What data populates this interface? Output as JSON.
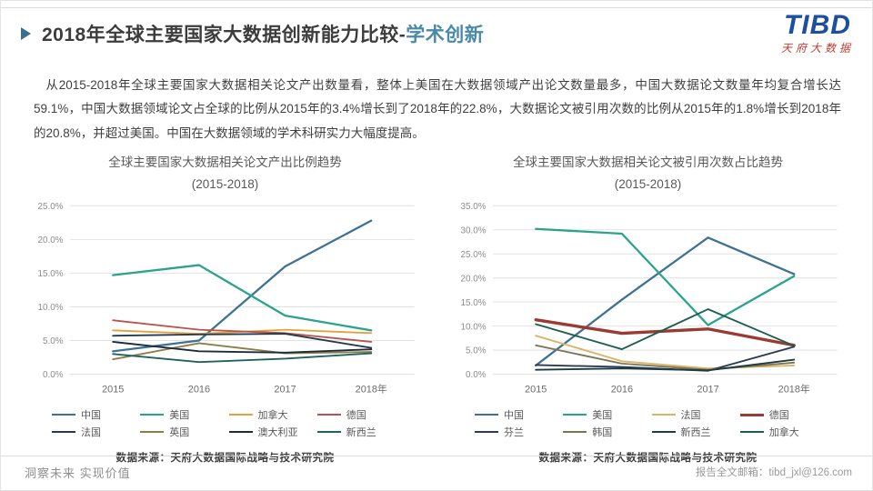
{
  "header": {
    "title_main": "2018年全球主要国家大数据创新能力比较-",
    "title_accent": "学术创新",
    "accent_color": "#4a89a8"
  },
  "logo": {
    "text": "TIBD",
    "subtext": "天府大数据"
  },
  "intro": {
    "text": "从2015-2018年全球主要国家大数据相关论文产出数量看，整体上美国在大数据领域产出论文数量最多，中国大数据论文数量年均复合增长达59.1%，中国大数据领域论文占全球的比例从2015年的3.4%增长到了2018年的22.8%，大数据论文被引用次数的比例从2015年的1.8%增长到2018年的20.8%，并超过美国。中国在大数据领域的学术科研实力大幅度提高。"
  },
  "chart_data": [
    {
      "type": "line",
      "title": "全球主要国家大数据相关论文产出比例趋势",
      "subtitle": "(2015-2018)",
      "categories": [
        "2015",
        "2016",
        "2017",
        "2018年"
      ],
      "ylim": [
        0,
        25
      ],
      "ytick_step": 5,
      "grid": true,
      "legend_position": "bottom",
      "series": [
        {
          "name": "中国",
          "color": "#3e7292",
          "width": 2.2,
          "values": [
            3.4,
            5.0,
            16.0,
            22.8
          ]
        },
        {
          "name": "美国",
          "color": "#2aa38b",
          "width": 2.2,
          "values": [
            14.7,
            16.2,
            8.7,
            6.5
          ]
        },
        {
          "name": "加拿大",
          "color": "#e2a33d",
          "width": 1.8,
          "values": [
            6.5,
            6.0,
            6.6,
            6.1
          ]
        },
        {
          "name": "德国",
          "color": "#b8544d",
          "width": 1.8,
          "values": [
            8.0,
            6.6,
            6.1,
            4.8
          ]
        },
        {
          "name": "法国",
          "color": "#253a4d",
          "width": 1.8,
          "values": [
            5.7,
            5.9,
            6.0,
            3.9
          ]
        },
        {
          "name": "英国",
          "color": "#8c7e4a",
          "width": 1.8,
          "values": [
            2.2,
            4.6,
            3.1,
            3.3
          ]
        },
        {
          "name": "澳大利亚",
          "color": "#1d2c3a",
          "width": 1.8,
          "values": [
            4.8,
            3.4,
            3.2,
            3.7
          ]
        },
        {
          "name": "新西兰",
          "color": "#20635a",
          "width": 1.8,
          "values": [
            3.0,
            1.8,
            2.3,
            3.1
          ]
        }
      ],
      "source": "数据来源：天府大数据国际战略与技术研究院"
    },
    {
      "type": "line",
      "title": "全球主要国家大数据相关论文被引用次数占比趋势",
      "subtitle": "(2015-2018)",
      "categories": [
        "2015",
        "2016",
        "2017",
        "2018年"
      ],
      "ylim": [
        0,
        35
      ],
      "ytick_step": 5,
      "grid": true,
      "legend_position": "bottom",
      "series": [
        {
          "name": "中国",
          "color": "#3e7292",
          "width": 2.2,
          "values": [
            1.8,
            15.5,
            28.4,
            20.8
          ]
        },
        {
          "name": "美国",
          "color": "#2aa38b",
          "width": 2.2,
          "values": [
            30.2,
            29.2,
            10.2,
            20.4
          ]
        },
        {
          "name": "法国",
          "color": "#d9b469",
          "width": 1.8,
          "values": [
            8.0,
            2.7,
            1.2,
            1.8
          ]
        },
        {
          "name": "德国",
          "color": "#9b3a32",
          "width": 3.2,
          "values": [
            11.3,
            8.5,
            9.4,
            6.0
          ]
        },
        {
          "name": "芬兰",
          "color": "#2b3c52",
          "width": 1.8,
          "values": [
            1.9,
            1.5,
            0.7,
            5.7
          ]
        },
        {
          "name": "韩国",
          "color": "#7d7455",
          "width": 1.8,
          "values": [
            6.0,
            2.2,
            0.9,
            2.4
          ]
        },
        {
          "name": "新西兰",
          "color": "#1d3b40",
          "width": 1.8,
          "values": [
            0.9,
            1.2,
            0.8,
            3.0
          ]
        },
        {
          "name": "加拿大",
          "color": "#1e5e50",
          "width": 1.8,
          "values": [
            10.4,
            5.2,
            13.5,
            5.9
          ]
        }
      ],
      "source": "数据来源：天府大数据国际战略与技术研究院"
    }
  ],
  "footer": {
    "left": "洞察未来 实现价值",
    "right": "报告全文邮箱：tibd_jxl@126.com"
  }
}
